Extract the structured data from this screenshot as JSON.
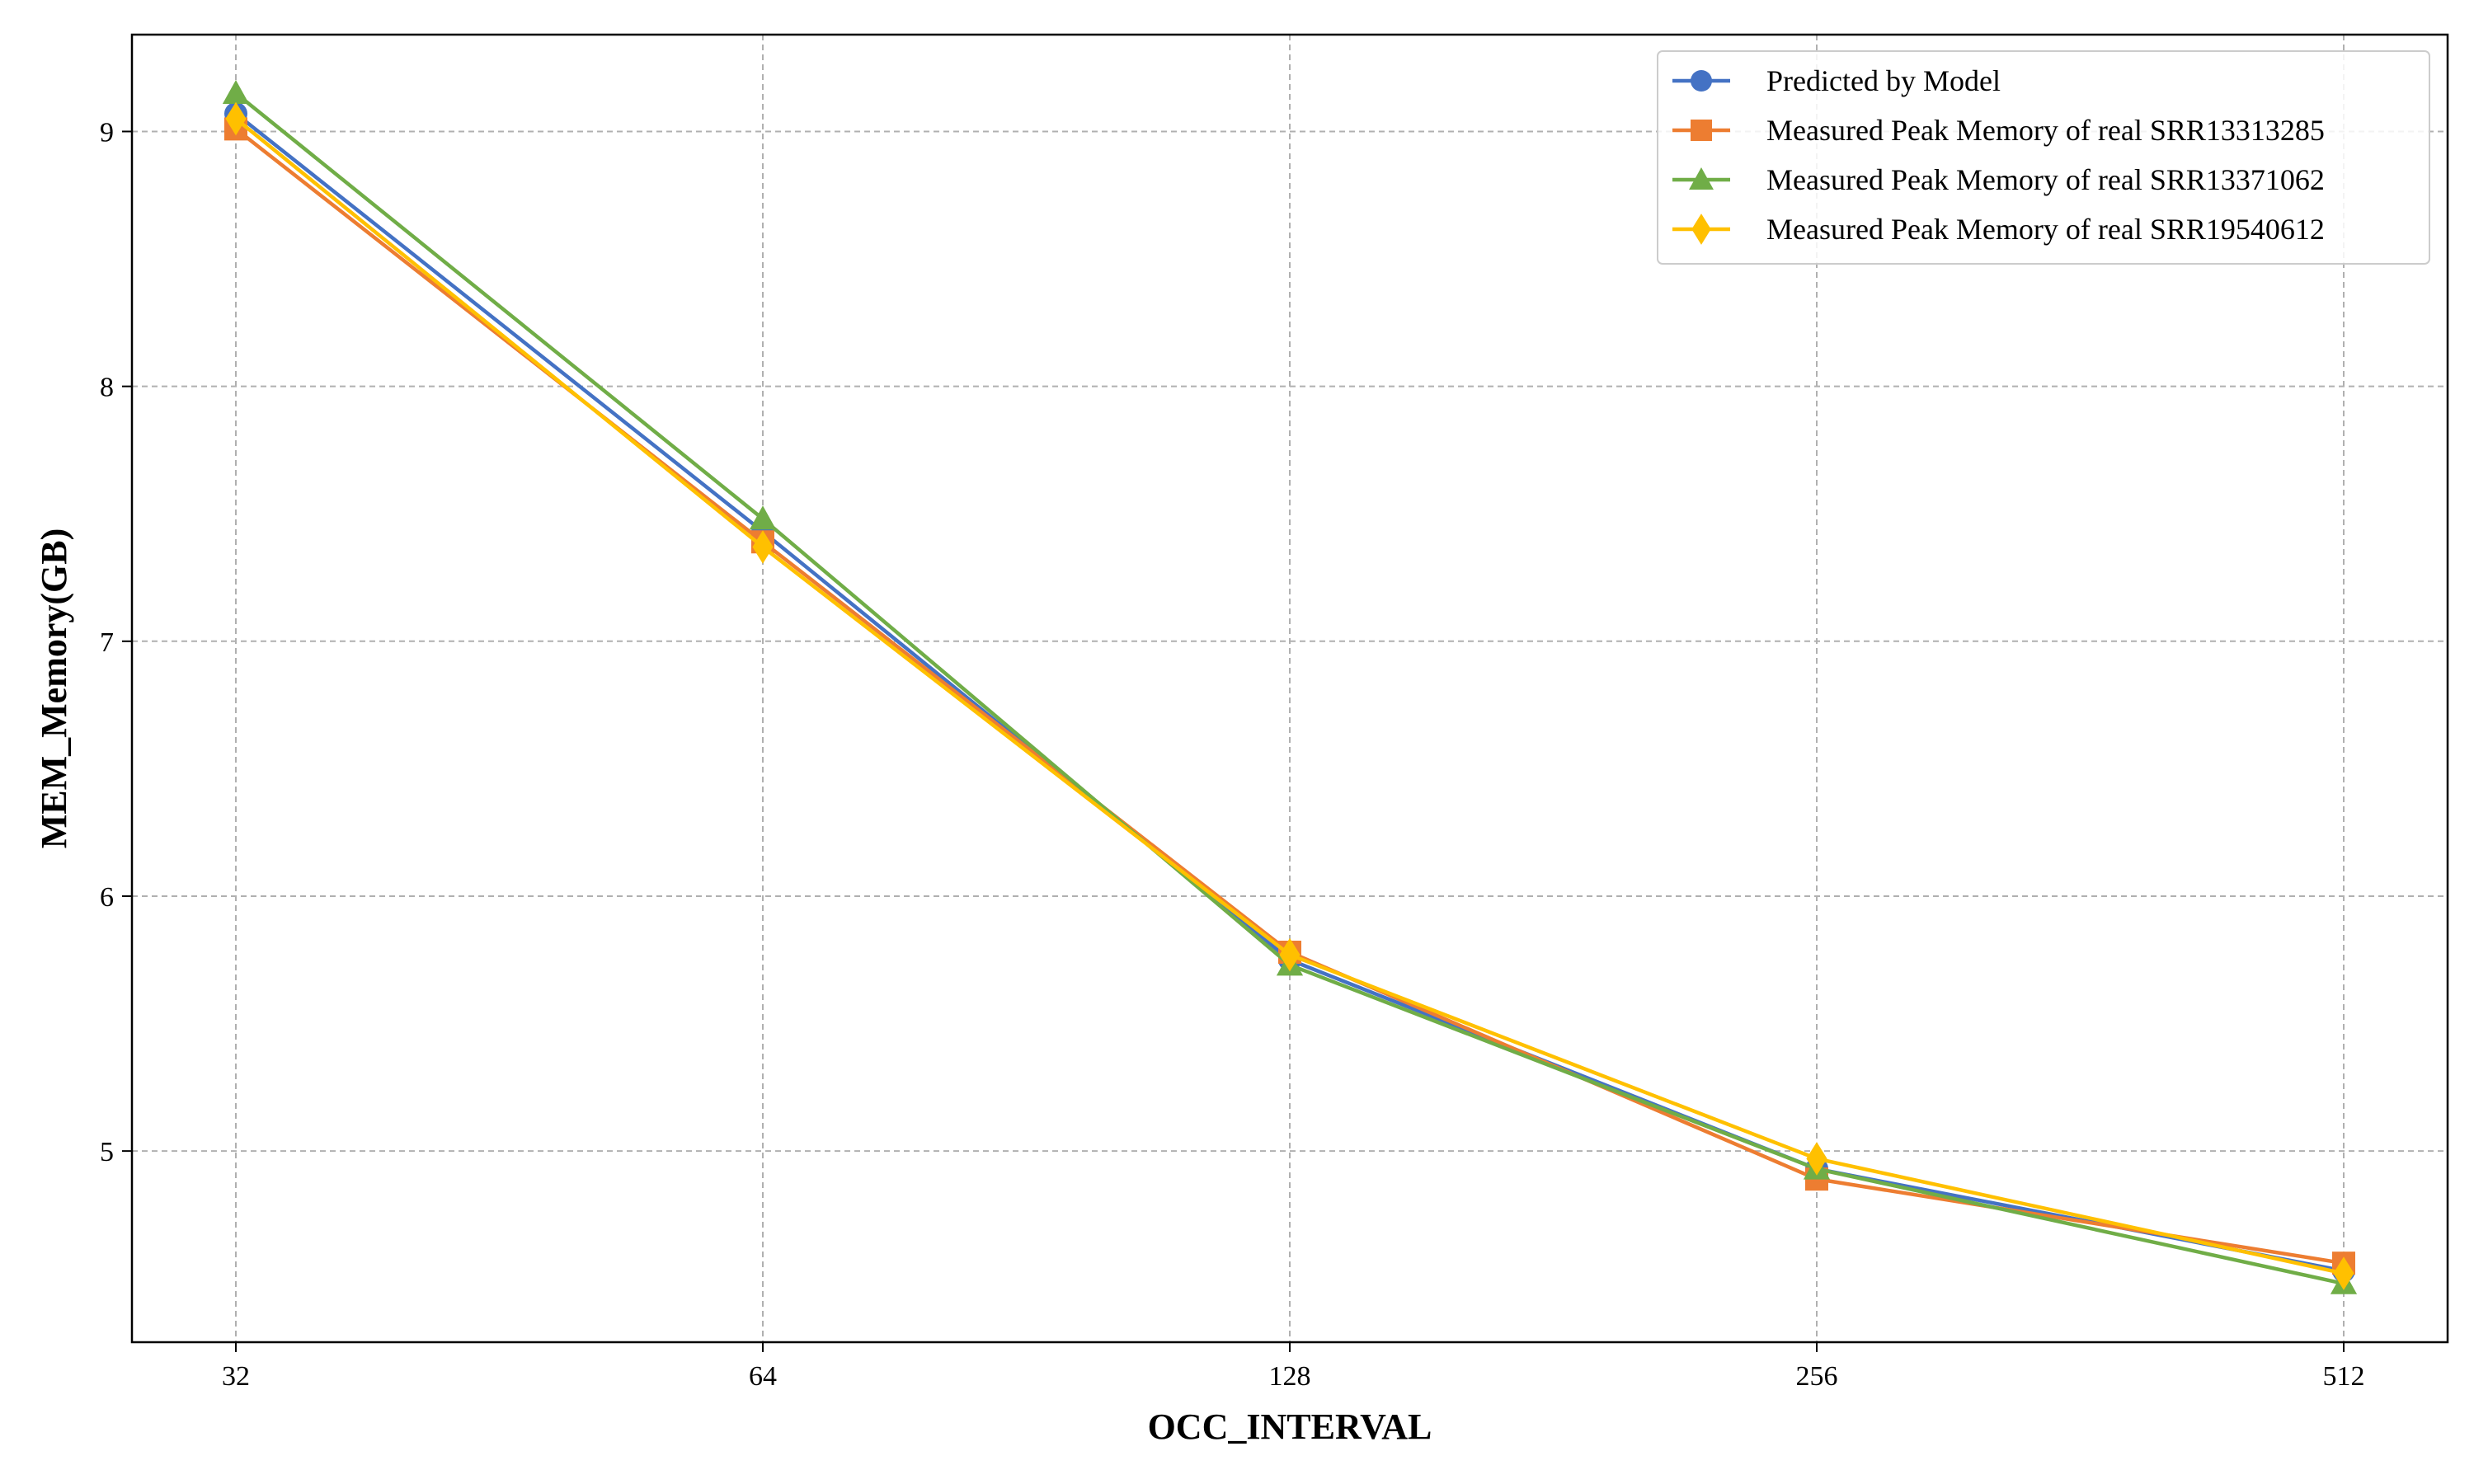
{
  "chart_data": {
    "type": "line",
    "title": "",
    "xlabel": "OCC_INTERVAL",
    "ylabel": "MEM_Memory(GB)",
    "x": [
      "32",
      "64",
      "128",
      "256",
      "512"
    ],
    "x_scale": "log2",
    "ylim": [
      4.25,
      9.38
    ],
    "yticks": [
      5,
      6,
      7,
      8,
      9
    ],
    "grid": true,
    "legend_position": "top-right",
    "series": [
      {
        "name": "Predicted by Model",
        "values": [
          9.07,
          7.43,
          5.75,
          4.93,
          4.53
        ],
        "color": "#4472c4",
        "marker": "circle"
      },
      {
        "name": "Measured Peak Memory of real SRR13313285",
        "values": [
          9.01,
          7.39,
          5.78,
          4.89,
          4.56
        ],
        "color": "#ed7d31",
        "marker": "square"
      },
      {
        "name": "Measured Peak Memory of real SRR13371062",
        "values": [
          9.15,
          7.48,
          5.73,
          4.93,
          4.48
        ],
        "color": "#70ad47",
        "marker": "triangle"
      },
      {
        "name": "Measured Peak Memory of real SRR19540612",
        "values": [
          9.05,
          7.37,
          5.77,
          4.97,
          4.52
        ],
        "color": "#ffc000",
        "marker": "diamond"
      }
    ]
  }
}
